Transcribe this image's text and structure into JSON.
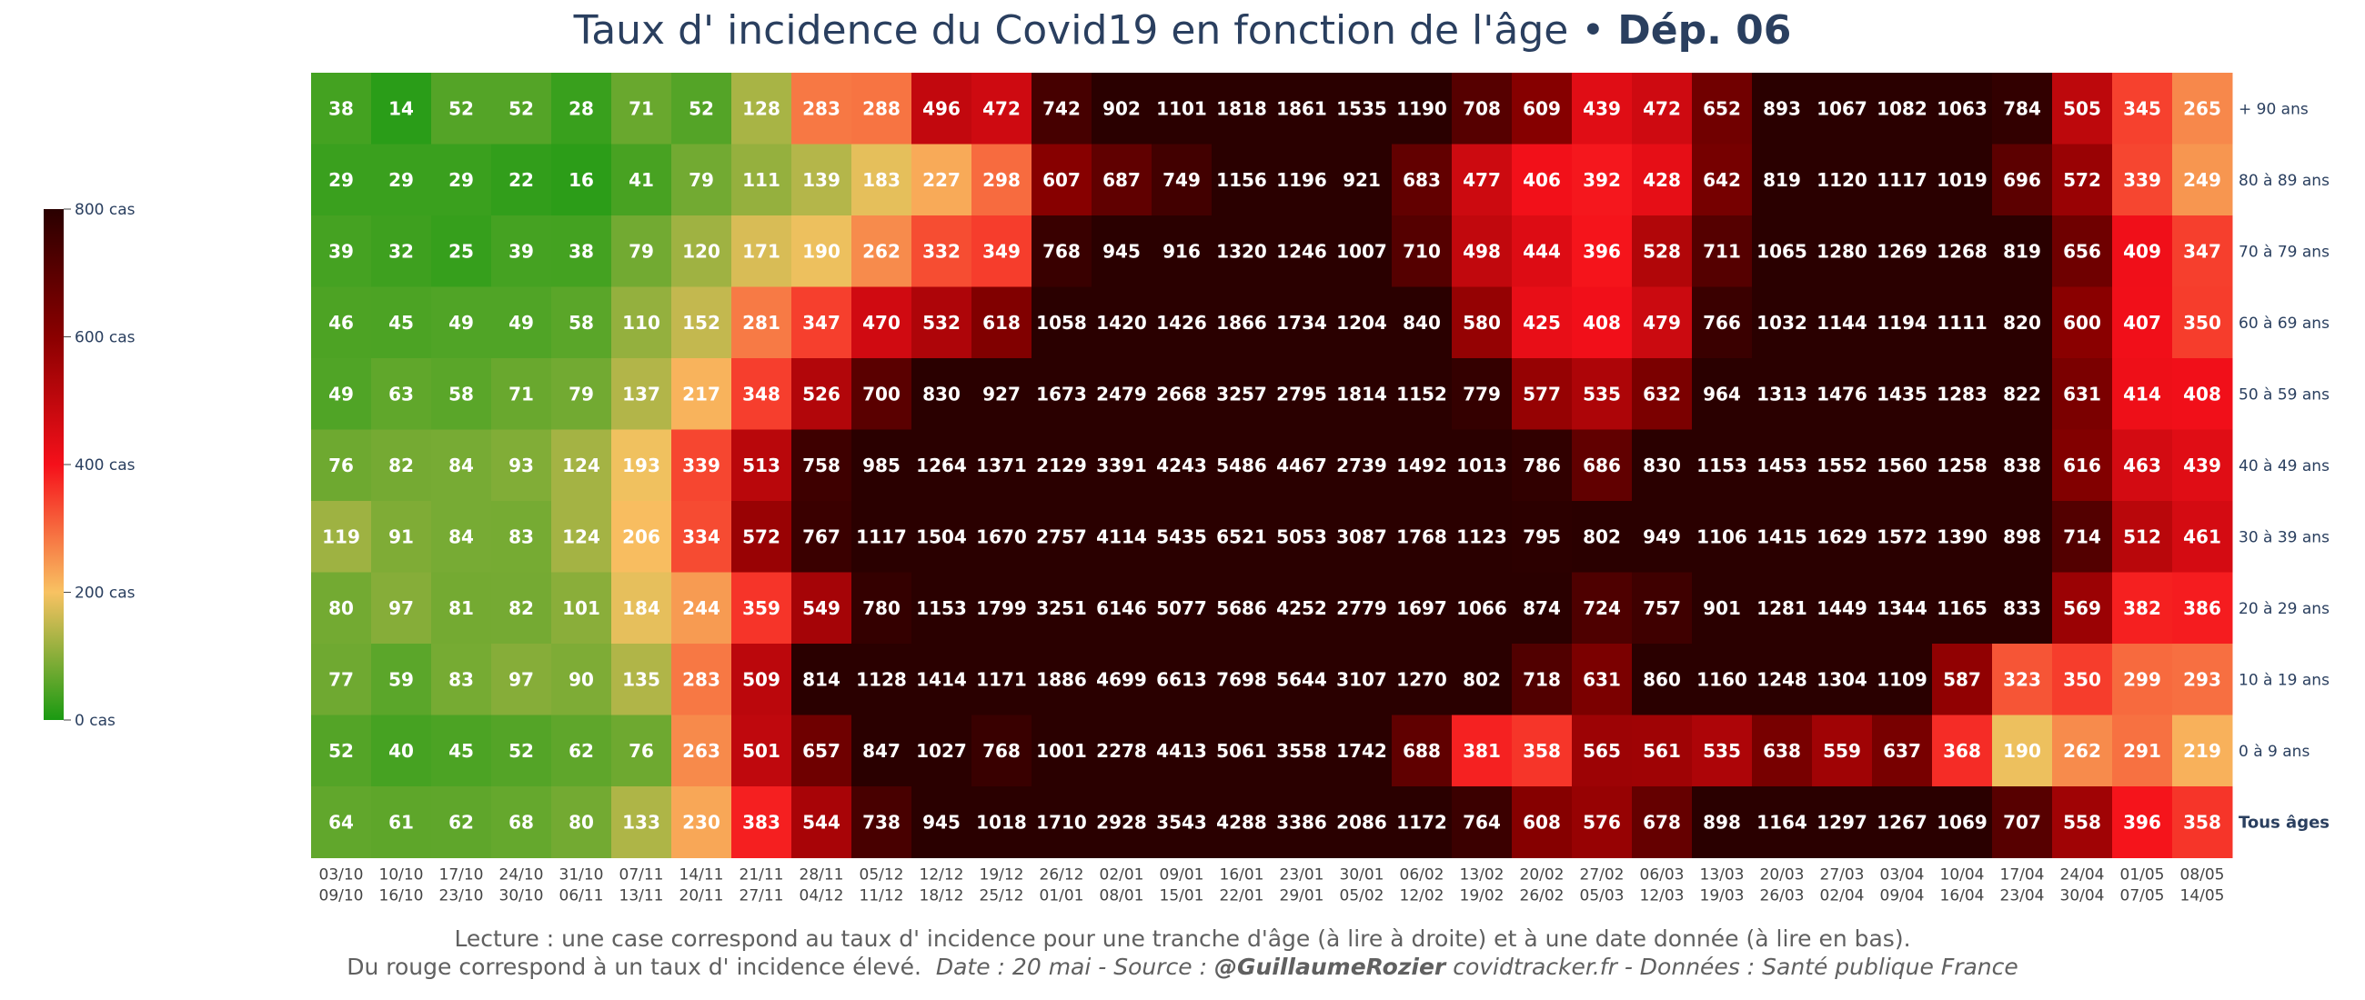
{
  "title": {
    "main": "Taux d' incidence du Covid19 en fonction de l'âge",
    "separator": "•",
    "dept": "Dép. 06"
  },
  "footer": {
    "line1": "Lecture : une case correspond au taux d' incidence pour une tranche d'âge (à lire à droite) et à une date donnée (à lire en bas).",
    "line2_plain": "Du rouge correspond à un taux d' incidence élevé.",
    "line2_italic": "Date : 20 mai - Source :",
    "line2_bold": "@GuillaumeRozier",
    "line2_tail": "covidtracker.fr - Données : Santé publique France"
  },
  "colorbar": {
    "ticks": [
      "800 cas",
      "600 cas",
      "400 cas",
      "200 cas",
      "0 cas"
    ],
    "tick_values": [
      800,
      600,
      400,
      200,
      0
    ],
    "range": [
      0,
      800
    ],
    "colorscale": [
      "#1a9a12",
      "#f8c262",
      "#f5101a",
      "#8a0000",
      "#2a0000"
    ]
  },
  "chart_data": {
    "type": "heatmap",
    "x_labels_top": [
      "03/10",
      "10/10",
      "17/10",
      "24/10",
      "31/10",
      "07/11",
      "14/11",
      "21/11",
      "28/11",
      "05/12",
      "12/12",
      "19/12",
      "26/12",
      "02/01",
      "09/01",
      "16/01",
      "23/01",
      "30/01",
      "06/02",
      "13/02",
      "20/02",
      "27/02",
      "06/03",
      "13/03",
      "20/03",
      "27/03",
      "03/04",
      "10/04",
      "17/04",
      "24/04",
      "01/05",
      "08/05"
    ],
    "x_labels_bottom": [
      "09/10",
      "16/10",
      "23/10",
      "30/10",
      "06/11",
      "13/11",
      "20/11",
      "27/11",
      "04/12",
      "11/12",
      "18/12",
      "25/12",
      "01/01",
      "08/01",
      "15/01",
      "22/01",
      "29/01",
      "05/02",
      "12/02",
      "19/02",
      "26/02",
      "05/03",
      "12/03",
      "19/03",
      "26/03",
      "02/04",
      "09/04",
      "16/04",
      "23/04",
      "30/04",
      "07/05",
      "14/05"
    ],
    "y_labels": [
      "+ 90 ans",
      "80 à 89 ans",
      "70 à 79 ans",
      "60 à 69 ans",
      "50 à 59 ans",
      "40 à 49 ans",
      "30 à 39 ans",
      "20 à 29 ans",
      "10 à 19 ans",
      "0 à 9 ans",
      "Tous âges"
    ],
    "z": [
      [
        38,
        14,
        52,
        52,
        28,
        71,
        52,
        128,
        283,
        288,
        496,
        472,
        742,
        902,
        1101,
        1818,
        1861,
        1535,
        1190,
        708,
        609,
        439,
        472,
        652,
        893,
        1067,
        1082,
        1063,
        784,
        505,
        345,
        265
      ],
      [
        29,
        29,
        29,
        22,
        16,
        41,
        79,
        111,
        139,
        183,
        227,
        298,
        607,
        687,
        749,
        1156,
        1196,
        921,
        683,
        477,
        406,
        392,
        428,
        642,
        819,
        1120,
        1117,
        1019,
        696,
        572,
        339,
        249
      ],
      [
        39,
        32,
        25,
        39,
        38,
        79,
        120,
        171,
        190,
        262,
        332,
        349,
        768,
        945,
        916,
        1320,
        1246,
        1007,
        710,
        498,
        444,
        396,
        528,
        711,
        1065,
        1280,
        1269,
        1268,
        819,
        656,
        409,
        347
      ],
      [
        46,
        45,
        49,
        49,
        58,
        110,
        152,
        281,
        347,
        470,
        532,
        618,
        1058,
        1420,
        1426,
        1866,
        1734,
        1204,
        840,
        580,
        425,
        408,
        479,
        766,
        1032,
        1144,
        1194,
        1111,
        820,
        600,
        407,
        350
      ],
      [
        49,
        63,
        58,
        71,
        79,
        137,
        217,
        348,
        526,
        700,
        830,
        927,
        1673,
        2479,
        2668,
        3257,
        2795,
        1814,
        1152,
        779,
        577,
        535,
        632,
        964,
        1313,
        1476,
        1435,
        1283,
        822,
        631,
        414,
        408
      ],
      [
        76,
        82,
        84,
        93,
        124,
        193,
        339,
        513,
        758,
        985,
        1264,
        1371,
        2129,
        3391,
        4243,
        5486,
        4467,
        2739,
        1492,
        1013,
        786,
        686,
        830,
        1153,
        1453,
        1552,
        1560,
        1258,
        838,
        616,
        463,
        439
      ],
      [
        119,
        91,
        84,
        83,
        124,
        206,
        334,
        572,
        767,
        1117,
        1504,
        1670,
        2757,
        4114,
        5435,
        6521,
        5053,
        3087,
        1768,
        1123,
        795,
        802,
        949,
        1106,
        1415,
        1629,
        1572,
        1390,
        898,
        714,
        512,
        461
      ],
      [
        80,
        97,
        81,
        82,
        101,
        184,
        244,
        359,
        549,
        780,
        1153,
        1799,
        3251,
        6146,
        5077,
        5686,
        4252,
        2779,
        1697,
        1066,
        874,
        724,
        757,
        901,
        1281,
        1449,
        1344,
        1165,
        833,
        569,
        382,
        386
      ],
      [
        77,
        59,
        83,
        97,
        90,
        135,
        283,
        509,
        814,
        1128,
        1414,
        1171,
        1886,
        4699,
        6613,
        7698,
        5644,
        3107,
        1270,
        802,
        718,
        631,
        860,
        1160,
        1248,
        1304,
        1109,
        587,
        323,
        350,
        299,
        293
      ],
      [
        52,
        40,
        45,
        52,
        62,
        76,
        263,
        501,
        657,
        847,
        1027,
        768,
        1001,
        2278,
        4413,
        5061,
        3558,
        1742,
        688,
        381,
        358,
        565,
        561,
        535,
        638,
        559,
        637,
        368,
        190,
        262,
        291,
        219
      ],
      [
        64,
        61,
        62,
        68,
        80,
        133,
        230,
        383,
        544,
        738,
        945,
        1018,
        1710,
        2928,
        3543,
        4288,
        3386,
        2086,
        1172,
        764,
        608,
        576,
        678,
        898,
        1164,
        1297,
        1267,
        1069,
        707,
        558,
        396,
        358
      ]
    ],
    "zmin": 0,
    "zmax": 800,
    "bold_row_label": "Tous âges"
  }
}
